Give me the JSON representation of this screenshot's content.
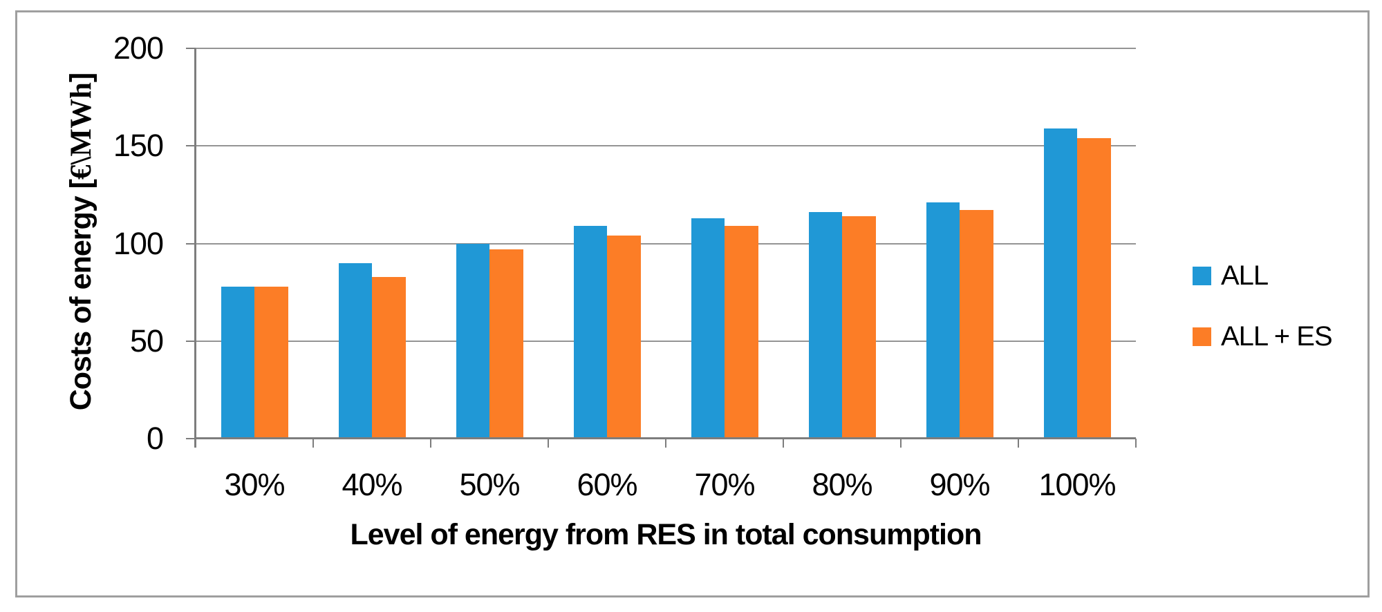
{
  "window": {
    "background": "#ffffff",
    "border_color": "#9f9f9f"
  },
  "chart_data": {
    "type": "bar",
    "title": "",
    "categories": [
      "30%",
      "40%",
      "50%",
      "60%",
      "70%",
      "80%",
      "90%",
      "100%"
    ],
    "series": [
      {
        "name": "ALL",
        "color": "#2098D6",
        "values": [
          78,
          90,
          100,
          109,
          113,
          116,
          121,
          159
        ]
      },
      {
        "name": "ALL + ES",
        "color": "#FC7D26",
        "values": [
          78,
          83,
          97,
          104,
          109,
          114,
          117,
          154
        ]
      }
    ],
    "xlabel": "Level of energy from RES in total consumption",
    "ylabel": "Costs of energy [€\\MWh]",
    "ylabel_parts": {
      "prefix": "Costs of energy [",
      "unit": "€\\MWh",
      "suffix": "]"
    },
    "ylim": [
      0,
      200
    ],
    "yticks": [
      0,
      50,
      100,
      150,
      200
    ],
    "grid": true,
    "legend_position": "right-middle",
    "colors": {
      "gridline": "#949494",
      "axis": "#7d7d7d",
      "text": "#000000"
    }
  }
}
